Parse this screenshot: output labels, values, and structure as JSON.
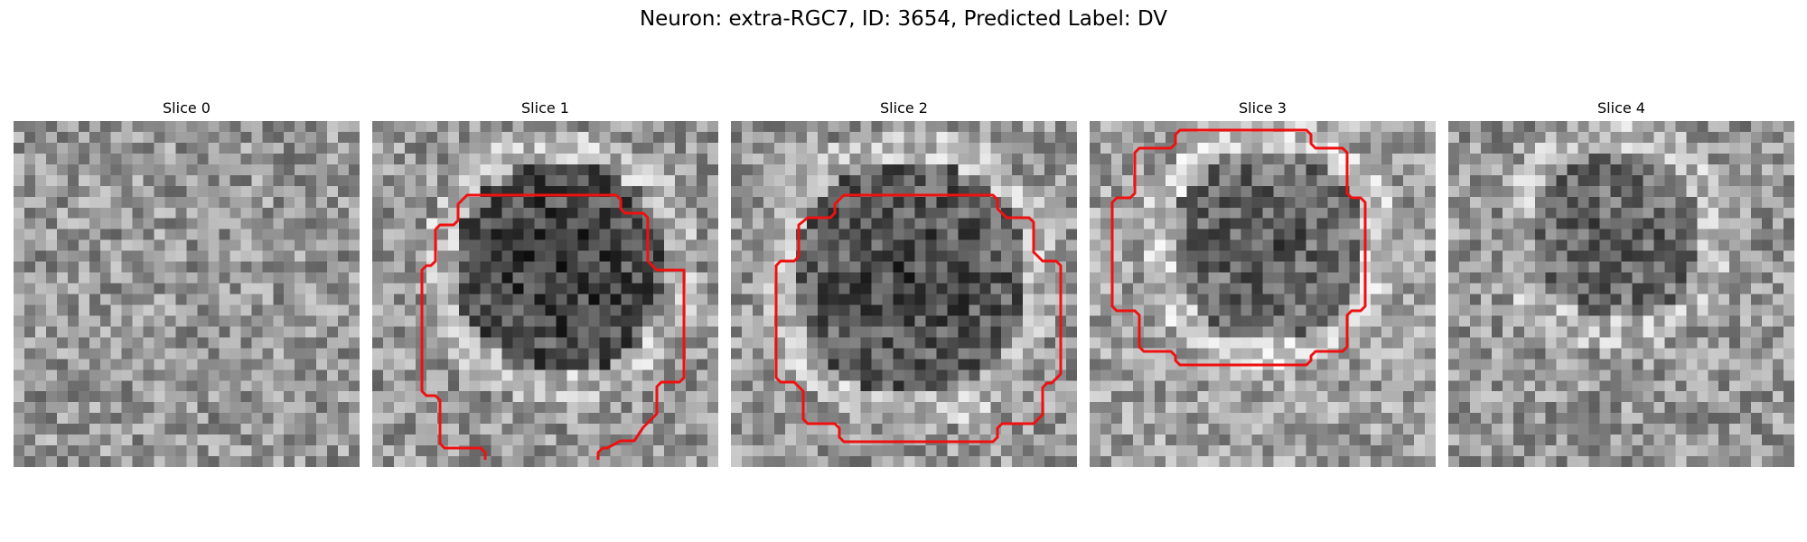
{
  "figure": {
    "title": "Neuron: extra-RGC7, ID: 3654, Predicted Label: DV"
  },
  "slices": [
    {
      "title": "Slice 0",
      "has_contour": false
    },
    {
      "title": "Slice 1",
      "has_contour": true
    },
    {
      "title": "Slice 2",
      "has_contour": true
    },
    {
      "title": "Slice 3",
      "has_contour": true
    },
    {
      "title": "Slice 4",
      "has_contour": false
    }
  ],
  "colors": {
    "contour": "#ee1111",
    "background": "#ffffff"
  }
}
